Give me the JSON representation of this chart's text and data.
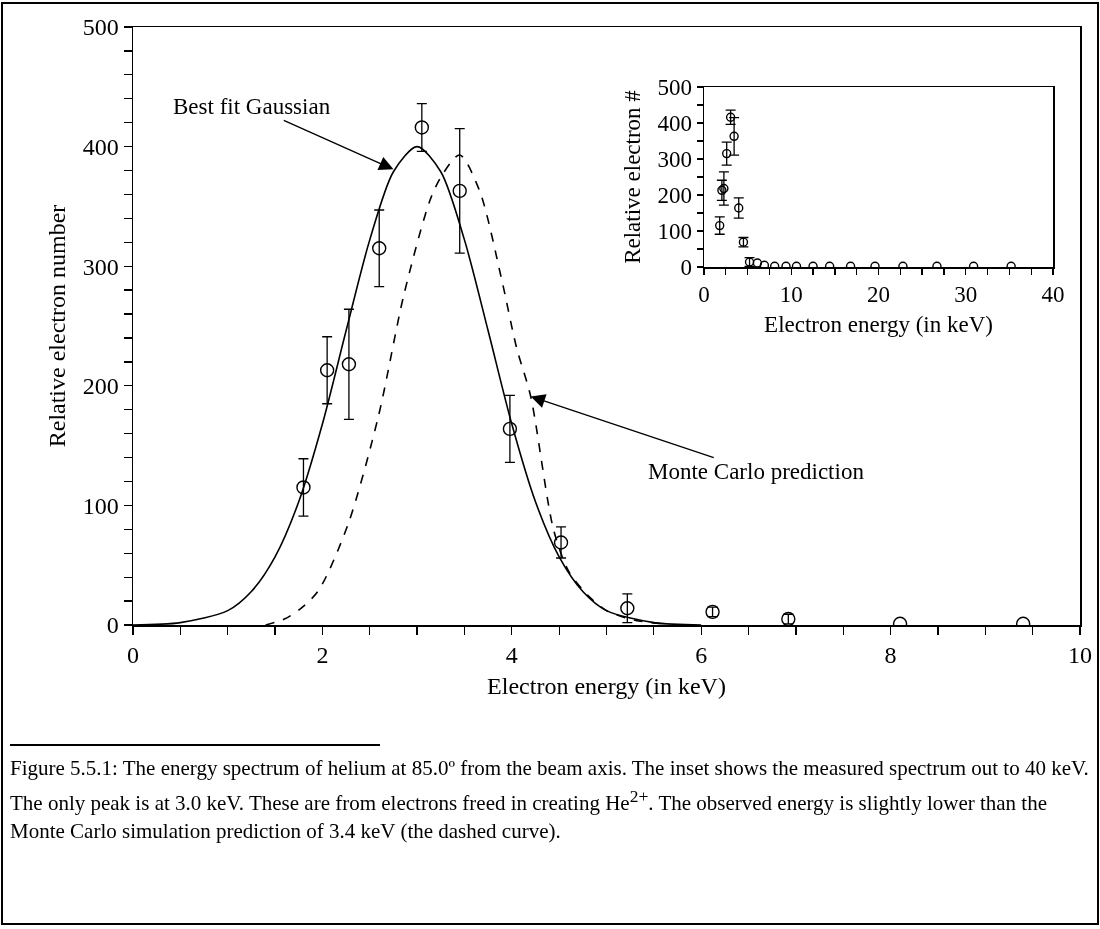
{
  "chart_data": [
    {
      "type": "scatter",
      "xlabel": "Electron energy (in keV)",
      "ylabel": "Relative electron number",
      "xlim": [
        0,
        10
      ],
      "ylim": [
        0,
        500
      ],
      "xticks": [
        0,
        {
          "value": 0.5,
          "label": null
        },
        2,
        {
          "value": 1,
          "label": null
        },
        {
          "value": 1.5,
          "label": null
        },
        {
          "value": 2.5,
          "label": null
        },
        {
          "value": 3,
          "label": null
        },
        {
          "value": 3.5,
          "label": null
        },
        4,
        {
          "value": 4.5,
          "label": null
        },
        {
          "value": 5,
          "label": null
        },
        {
          "value": 5.5,
          "label": null
        },
        6,
        {
          "value": 6.5,
          "label": null
        },
        {
          "value": 7,
          "label": null
        },
        {
          "value": 7.5,
          "label": null
        },
        8,
        {
          "value": 8.5,
          "label": null
        },
        {
          "value": 9,
          "label": null
        },
        {
          "value": 9.5,
          "label": null
        },
        10
      ],
      "yticks": [
        0,
        {
          "value": 20,
          "label": null
        },
        {
          "value": 40,
          "label": null
        },
        {
          "value": 60,
          "label": null
        },
        {
          "value": 80,
          "label": null
        },
        100,
        {
          "value": 120,
          "label": null
        },
        {
          "value": 140,
          "label": null
        },
        {
          "value": 160,
          "label": null
        },
        {
          "value": 180,
          "label": null
        },
        200,
        {
          "value": 220,
          "label": null
        },
        {
          "value": 240,
          "label": null
        },
        {
          "value": 260,
          "label": null
        },
        {
          "value": 280,
          "label": null
        },
        300,
        {
          "value": 320,
          "label": null
        },
        {
          "value": 340,
          "label": null
        },
        {
          "value": 360,
          "label": null
        },
        {
          "value": 380,
          "label": null
        },
        400,
        {
          "value": 420,
          "label": null
        },
        {
          "value": 440,
          "label": null
        },
        {
          "value": 460,
          "label": null
        },
        {
          "value": 480,
          "label": null
        },
        500
      ],
      "series": [
        {
          "color": "#000000",
          "marker": "circle",
          "x": [
            1.8,
            2.05,
            2.28,
            2.6,
            3.05,
            3.45,
            3.98,
            4.52,
            5.22,
            6.12,
            6.92,
            8.1,
            9.4
          ],
          "values": [
            115,
            213,
            218,
            315,
            416,
            363,
            164,
            69,
            14,
            11,
            5,
            1,
            1
          ],
          "errors": [
            24,
            28,
            46,
            32,
            20,
            52,
            28,
            13,
            12,
            4,
            4,
            null,
            null
          ]
        },
        {
          "type": "line",
          "color": "#000000",
          "line_style": "solid",
          "marker": "none",
          "x": [
            0,
            0.5,
            1,
            1.25,
            1.5,
            1.75,
            2,
            2.25,
            2.5,
            2.75,
            3,
            3.25,
            3.5,
            3.75,
            4,
            4.25,
            4.5,
            4.75,
            5,
            5.5,
            6
          ],
          "values": [
            0,
            2,
            12,
            28,
            57,
            103,
            168,
            246,
            322,
            379,
            400,
            379,
            322,
            246,
            168,
            103,
            57,
            28,
            12,
            2,
            0
          ]
        },
        {
          "type": "line",
          "color": "#000000",
          "line_style": "dashed",
          "marker": "none",
          "x": [
            1.4,
            1.6,
            1.76,
            1.96,
            2.27,
            2.59,
            2.86,
            3.14,
            3.27,
            3.45,
            3.66,
            3.89,
            4.05,
            4.2,
            4.44,
            4.6,
            4.8,
            5,
            5.3,
            5.6
          ],
          "values": [
            0,
            5,
            13,
            29,
            84,
            174,
            276,
            356,
            377,
            393,
            363,
            290,
            232,
            191,
            80,
            45,
            25,
            12,
            4,
            1
          ]
        }
      ],
      "annotations": [
        {
          "text": "Best fit Gaussian",
          "x": 2.75,
          "y": 381
        },
        {
          "text": "Monte Carlo prediction",
          "x": 4.2,
          "y": 191
        },
        "Figure 5.5.1:  The energy spectrum of helium at 85.0º from the beam axis.  The inset shows the measured spectrum out to 40 keV.  The only peak is at 3.0 keV. These are from electrons freed in creating He$^{2+}$.  The observed energy is slightly lower than the Monte Carlo simulation prediction of 3.4 keV (the dashed curve)."
      ]
    },
    {
      "type": "scatter",
      "xlabel": "Electron energy (in keV)",
      "ylabel": "Relative electron #",
      "xlim": [
        0,
        40
      ],
      "ylim": [
        0,
        500
      ],
      "marker": "circle",
      "color": "#000000",
      "xticks": [
        0,
        {
          "value": 2.5,
          "label": null
        },
        {
          "value": 5,
          "label": null
        },
        {
          "value": 7.5,
          "label": null
        },
        10,
        {
          "value": 12.5,
          "label": null
        },
        {
          "value": 15,
          "label": null
        },
        {
          "value": 17.5,
          "label": null
        },
        20,
        {
          "value": 22.5,
          "label": null
        },
        {
          "value": 25,
          "label": null
        },
        {
          "value": 27.5,
          "label": null
        },
        30,
        {
          "value": 32.5,
          "label": null
        },
        {
          "value": 35,
          "label": null
        },
        {
          "value": 37.5,
          "label": null
        },
        40
      ],
      "yticks": [
        0,
        {
          "value": 50,
          "label": null
        },
        100,
        {
          "value": 150,
          "label": null
        },
        200,
        {
          "value": 250,
          "label": null
        },
        300,
        {
          "value": 350,
          "label": null
        },
        400,
        {
          "value": 450,
          "label": null
        },
        500
      ],
      "x": [
        1.8,
        2.05,
        2.28,
        2.6,
        3.05,
        3.45,
        3.98,
        4.52,
        5.22,
        6.12,
        6.92,
        8.1,
        9.4,
        10.6,
        12.5,
        14.4,
        16.8,
        19.6,
        22.8,
        26.7,
        30.9,
        35.2
      ],
      "values": [
        115,
        213,
        218,
        315,
        416,
        363,
        164,
        69,
        14,
        11,
        5,
        2,
        2,
        2,
        2,
        2,
        2,
        2,
        2,
        2,
        2,
        2
      ],
      "errors": [
        24,
        28,
        46,
        32,
        20,
        52,
        28,
        13,
        12,
        null,
        null,
        null,
        null,
        null,
        null,
        null,
        null,
        null,
        null,
        null,
        null,
        null
      ]
    }
  ]
}
